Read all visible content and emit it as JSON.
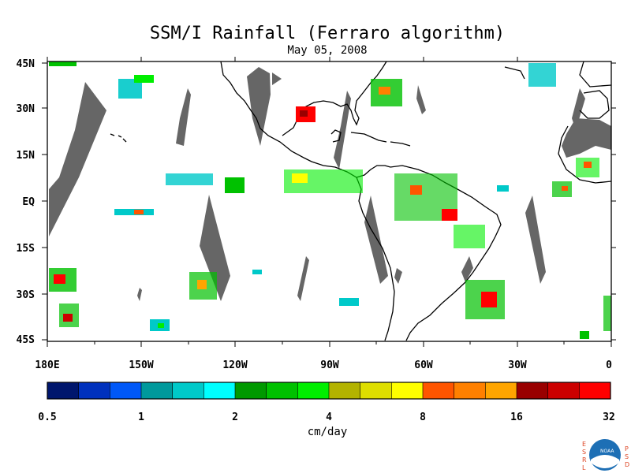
{
  "title": "SSM/I Rainfall (Ferraro algorithm)",
  "date": "May 05, 2008",
  "lat_labels": [
    "45N",
    "30N",
    "15N",
    "EQ",
    "15S",
    "30S",
    "45S"
  ],
  "lon_labels": [
    "180E",
    "150W",
    "120W",
    "90W",
    "60W",
    "30W",
    "0"
  ],
  "colorbar": {
    "tick_labels": [
      "0.5",
      "1",
      "2",
      "4",
      "8",
      "16",
      "32"
    ],
    "units": "cm/day",
    "colors": [
      "#00166d",
      "#0031bd",
      "#0058f8",
      "#00999c",
      "#00c9c9",
      "#00ffff",
      "#009900",
      "#00c100",
      "#00ee00",
      "#b3b300",
      "#dede00",
      "#ffff00",
      "#ff5500",
      "#ff8000",
      "#ffa500",
      "#990000",
      "#cc0000",
      "#ff0000"
    ]
  },
  "logo": {
    "center_text": "NOAA",
    "left_letters": [
      "E",
      "S",
      "R",
      "L"
    ],
    "right_letters": [
      "P",
      "S",
      "D"
    ]
  },
  "colors": {
    "swath_gap": "#666666",
    "coast": "#000000"
  }
}
